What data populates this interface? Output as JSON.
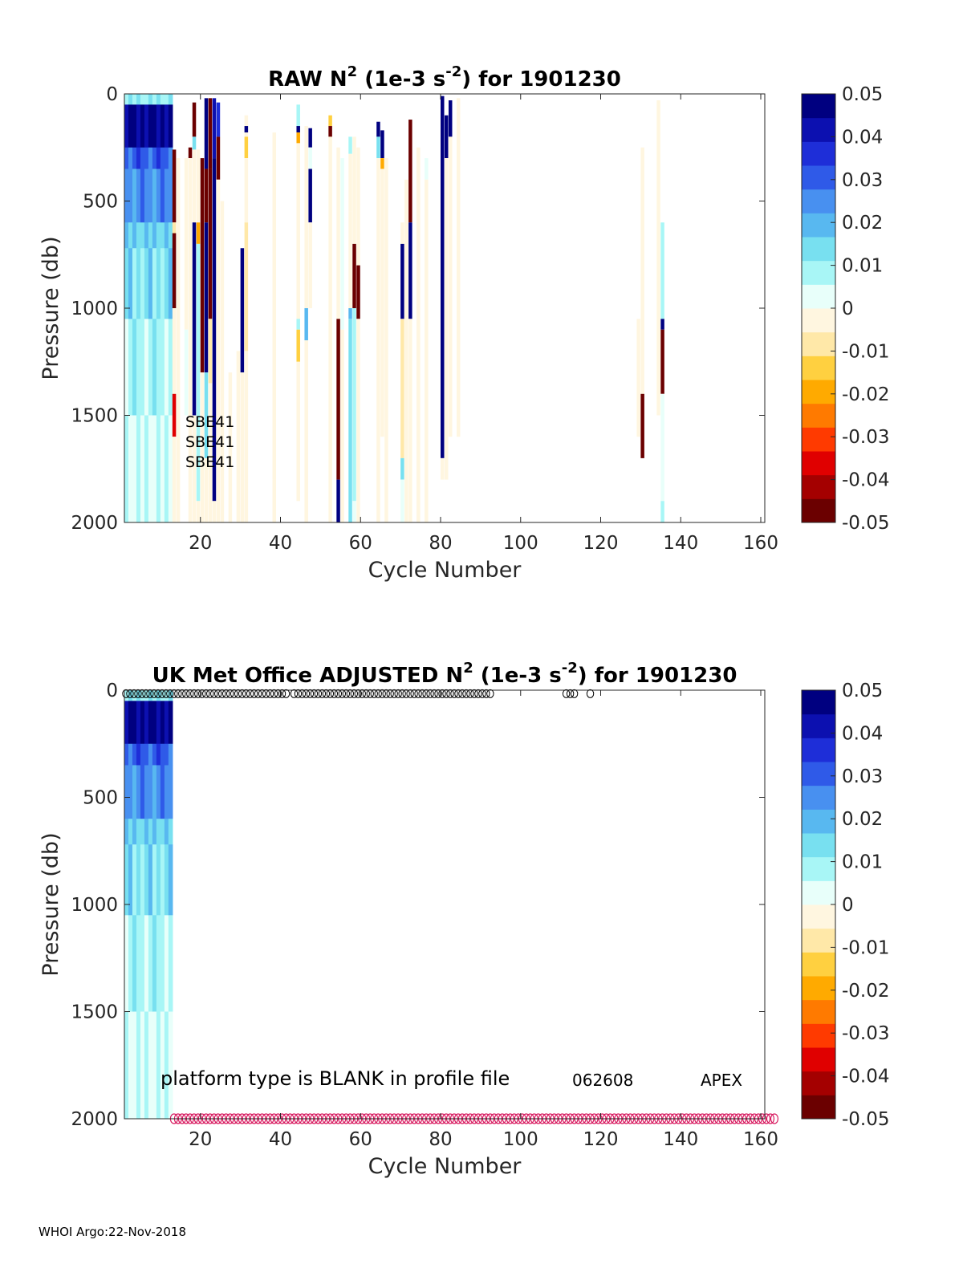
{
  "footer": "WHOI Argo:22-Nov-2018",
  "colormap": [
    "#6b0000",
    "#a40000",
    "#e00000",
    "#ff3a00",
    "#ff7a00",
    "#ffaa00",
    "#ffd040",
    "#ffe8a8",
    "#fff6e0",
    "#e8fffa",
    "#a8f6f6",
    "#78e0f0",
    "#58b8f0",
    "#4890f0",
    "#2f5ae8",
    "#1e2ed8",
    "#0c10b0",
    "#000080"
  ],
  "chart_data": [
    {
      "type": "heatmap",
      "title": {
        "pre": "RAW N",
        "sup1": "2",
        "mid": " (1e-3 s",
        "sup2": "-2",
        "post": ") for 1901230"
      },
      "xlabel": "Cycle Number",
      "ylabel": "Pressure (db)",
      "xlim": [
        1,
        161
      ],
      "ylim": [
        0,
        2000
      ],
      "y_reversed": true,
      "xticks": [
        "20",
        "40",
        "60",
        "80",
        "100",
        "120",
        "140",
        "160"
      ],
      "yticks": [
        "0",
        "500",
        "1000",
        "1500",
        "2000"
      ],
      "colorbar": {
        "range": [
          -0.05,
          0.05
        ],
        "ticks": [
          "0.05",
          "0.04",
          "0.03",
          "0.02",
          "0.01",
          "0",
          "-0.01",
          "-0.02",
          "-0.03",
          "-0.04",
          "-0.05"
        ]
      },
      "annotations": [
        "SBE41",
        "SBE41",
        "SBE41"
      ],
      "profile_columns": [
        {
          "cycle": 13,
          "segments": [
            [
              260,
              600,
              -0.045
            ],
            [
              600,
              650,
              -0.01
            ],
            [
              650,
              1000,
              -0.045
            ],
            [
              1000,
              1400,
              -0.005
            ],
            [
              1400,
              1600,
              -0.035
            ],
            [
              1600,
              2000,
              -0.004
            ]
          ]
        },
        {
          "cycle": 14,
          "segments": [
            [
              300,
              2000,
              -0.003
            ]
          ]
        },
        {
          "cycle": 16,
          "segments": [
            [
              300,
              1100,
              -0.003
            ],
            [
              1100,
              1500,
              0.0
            ]
          ]
        },
        {
          "cycle": 17,
          "segments": [
            [
              250,
              300,
              -0.045
            ],
            [
              300,
              2000,
              -0.003
            ]
          ]
        },
        {
          "cycle": 18,
          "segments": [
            [
              40,
              200,
              -0.045
            ],
            [
              200,
              260,
              0.012
            ],
            [
              260,
              600,
              -0.003
            ],
            [
              600,
              1500,
              0.045
            ],
            [
              1500,
              2000,
              -0.003
            ]
          ]
        },
        {
          "cycle": 19,
          "segments": [
            [
              260,
              600,
              -0.003
            ],
            [
              600,
              700,
              -0.02
            ],
            [
              700,
              1900,
              0.01
            ],
            [
              1900,
              2000,
              -0.003
            ]
          ]
        },
        {
          "cycle": 20,
          "segments": [
            [
              300,
              1300,
              -0.045
            ],
            [
              1300,
              2000,
              -0.003
            ]
          ]
        },
        {
          "cycle": 21,
          "segments": [
            [
              20,
              350,
              0.045
            ],
            [
              350,
              600,
              -0.045
            ],
            [
              600,
              1300,
              0.045
            ],
            [
              1300,
              1700,
              0.012
            ],
            [
              1700,
              2000,
              -0.003
            ]
          ]
        },
        {
          "cycle": 22,
          "segments": [
            [
              20,
              350,
              -0.045
            ],
            [
              350,
              1050,
              -0.045
            ],
            [
              1050,
              1350,
              -0.01
            ],
            [
              1350,
              2000,
              -0.003
            ]
          ]
        },
        {
          "cycle": 23,
          "segments": [
            [
              20,
              300,
              0.04
            ],
            [
              300,
              1900,
              0.045
            ],
            [
              1900,
              2000,
              -0.003
            ]
          ]
        },
        {
          "cycle": 24,
          "segments": [
            [
              40,
              200,
              0.035
            ],
            [
              200,
              400,
              -0.045
            ],
            [
              400,
              2000,
              -0.003
            ]
          ]
        },
        {
          "cycle": 25,
          "segments": [
            [
              500,
              2000,
              -0.003
            ]
          ]
        },
        {
          "cycle": 27,
          "segments": [
            [
              1300,
              2000,
              -0.003
            ]
          ]
        },
        {
          "cycle": 29,
          "segments": [
            [
              1200,
              2000,
              -0.003
            ]
          ]
        },
        {
          "cycle": 30,
          "segments": [
            [
              720,
              1300,
              0.045
            ],
            [
              1300,
              2000,
              -0.003
            ]
          ]
        },
        {
          "cycle": 31,
          "segments": [
            [
              100,
              150,
              -0.003
            ],
            [
              150,
              180,
              0.045
            ],
            [
              180,
              200,
              -0.003
            ],
            [
              200,
              300,
              -0.015
            ],
            [
              300,
              600,
              -0.003
            ],
            [
              600,
              1200,
              -0.01
            ],
            [
              1200,
              2000,
              -0.003
            ]
          ]
        },
        {
          "cycle": 38,
          "segments": [
            [
              180,
              1800,
              -0.003
            ],
            [
              1800,
              2000,
              -0.004
            ]
          ]
        },
        {
          "cycle": 44,
          "segments": [
            [
              50,
              150,
              0.008
            ],
            [
              150,
              180,
              0.045
            ],
            [
              180,
              230,
              -0.02
            ],
            [
              230,
              1050,
              -0.003
            ],
            [
              1050,
              1100,
              0.01
            ],
            [
              1100,
              1250,
              -0.015
            ],
            [
              1250,
              1900,
              -0.003
            ]
          ]
        },
        {
          "cycle": 46,
          "segments": [
            [
              150,
              1000,
              -0.003
            ],
            [
              1000,
              1150,
              0.02
            ],
            [
              1150,
              2000,
              -0.003
            ]
          ]
        },
        {
          "cycle": 47,
          "segments": [
            [
              160,
              250,
              0.045
            ],
            [
              250,
              350,
              0.0
            ],
            [
              350,
              600,
              0.045
            ],
            [
              600,
              1000,
              -0.003
            ]
          ]
        },
        {
          "cycle": 52,
          "segments": [
            [
              100,
              150,
              -0.015
            ],
            [
              150,
              200,
              -0.045
            ],
            [
              200,
              350,
              -0.003
            ],
            [
              350,
              1150,
              -0.003
            ],
            [
              1150,
              2000,
              -0.003
            ]
          ]
        },
        {
          "cycle": 54,
          "segments": [
            [
              250,
              1050,
              -0.003
            ],
            [
              1050,
              1800,
              -0.045
            ],
            [
              1800,
              2000,
              0.045
            ]
          ]
        },
        {
          "cycle": 55,
          "segments": [
            [
              300,
              1100,
              0.0
            ],
            [
              1100,
              2000,
              -0.003
            ]
          ]
        },
        {
          "cycle": 57,
          "segments": [
            [
              200,
              280,
              0.01
            ],
            [
              280,
              550,
              -0.003
            ],
            [
              550,
              1000,
              -0.003
            ],
            [
              1000,
              1050,
              0.02
            ],
            [
              1050,
              2000,
              0.012
            ]
          ]
        },
        {
          "cycle": 58,
          "segments": [
            [
              200,
              700,
              -0.003
            ],
            [
              700,
              1000,
              -0.045
            ],
            [
              1000,
              1900,
              0.008
            ],
            [
              1900,
              2000,
              0.003
            ]
          ]
        },
        {
          "cycle": 59,
          "segments": [
            [
              250,
              800,
              -0.003
            ],
            [
              800,
              1050,
              -0.045
            ],
            [
              1050,
              2000,
              -0.003
            ]
          ]
        },
        {
          "cycle": 64,
          "segments": [
            [
              130,
              200,
              0.045
            ],
            [
              200,
              300,
              0.012
            ],
            [
              300,
              2000,
              -0.003
            ]
          ]
        },
        {
          "cycle": 65,
          "segments": [
            [
              170,
              300,
              0.045
            ],
            [
              300,
              350,
              -0.02
            ],
            [
              350,
              1600,
              -0.003
            ]
          ]
        },
        {
          "cycle": 66,
          "segments": [
            [
              300,
              2000,
              -0.003
            ]
          ]
        },
        {
          "cycle": 70,
          "segments": [
            [
              600,
              700,
              -0.003
            ],
            [
              700,
              1050,
              0.045
            ],
            [
              1050,
              1700,
              -0.01
            ],
            [
              1700,
              1800,
              0.012
            ],
            [
              1800,
              2000,
              0.005
            ]
          ]
        },
        {
          "cycle": 71,
          "segments": [
            [
              400,
              2000,
              -0.003
            ]
          ]
        },
        {
          "cycle": 72,
          "segments": [
            [
              120,
              600,
              -0.045
            ],
            [
              600,
              1050,
              0.045
            ],
            [
              1050,
              2000,
              -0.003
            ]
          ]
        },
        {
          "cycle": 74,
          "segments": [
            [
              250,
              1050,
              -0.003
            ],
            [
              1050,
              2000,
              -0.003
            ]
          ]
        },
        {
          "cycle": 76,
          "segments": [
            [
              300,
              400,
              0.005
            ],
            [
              400,
              2000,
              -0.003
            ]
          ]
        },
        {
          "cycle": 80,
          "segments": [
            [
              10,
              1700,
              0.045
            ],
            [
              1700,
              1800,
              -0.003
            ]
          ]
        },
        {
          "cycle": 81,
          "segments": [
            [
              100,
              300,
              0.045
            ],
            [
              300,
              1800,
              -0.003
            ]
          ]
        },
        {
          "cycle": 82,
          "segments": [
            [
              30,
              200,
              0.045
            ],
            [
              200,
              1600,
              -0.003
            ]
          ]
        },
        {
          "cycle": 84,
          "segments": [
            [
              20,
              80,
              -0.003
            ],
            [
              80,
              1600,
              -0.003
            ]
          ]
        },
        {
          "cycle": 129,
          "segments": [
            [
              1050,
              1600,
              -0.003
            ]
          ]
        },
        {
          "cycle": 130,
          "segments": [
            [
              250,
              1400,
              -0.003
            ],
            [
              1400,
              1700,
              -0.045
            ]
          ]
        },
        {
          "cycle": 134,
          "segments": [
            [
              30,
              1500,
              -0.003
            ]
          ]
        },
        {
          "cycle": 135,
          "segments": [
            [
              600,
              1050,
              0.01
            ],
            [
              1050,
              1100,
              0.045
            ],
            [
              1100,
              1400,
              -0.045
            ],
            [
              1400,
              1900,
              0.005
            ],
            [
              1900,
              2000,
              0.01
            ]
          ]
        }
      ]
    },
    {
      "type": "heatmap",
      "title": {
        "pre": "UK Met Office  ADJUSTED N",
        "sup1": "2",
        "mid": " (1e-3 s",
        "sup2": "-2",
        "post": ") for 1901230"
      },
      "xlabel": "Cycle Number",
      "ylabel": "Pressure (db)",
      "xlim": [
        1,
        161
      ],
      "ylim": [
        0,
        2000
      ],
      "y_reversed": true,
      "xticks": [
        "20",
        "40",
        "60",
        "80",
        "100",
        "120",
        "140",
        "160"
      ],
      "yticks": [
        "0",
        "500",
        "1000",
        "1500",
        "2000"
      ],
      "colorbar": {
        "range": [
          -0.05,
          0.05
        ],
        "ticks": [
          "0.05",
          "0.04",
          "0.03",
          "0.02",
          "0.01",
          "0",
          "-0.01",
          "-0.02",
          "-0.03",
          "-0.04",
          "-0.05"
        ]
      },
      "annotations": [
        "platform type is BLANK in profile file",
        "062608",
        "APEX"
      ],
      "top_markers": {
        "symbol": "o",
        "cycles_range": [
          1,
          92
        ],
        "gap_cycles": [
          42
        ],
        "extra_cycles": [
          111,
          112,
          113,
          117
        ],
        "pressure": 5
      },
      "bottom_markers": {
        "symbol": "o",
        "color": "#d81b60",
        "cycles_range": [
          13,
          163
        ],
        "pressure": 2000
      }
    }
  ],
  "shared_data_block": {
    "cycles": [
      1,
      12
    ],
    "layers": [
      {
        "from": 0,
        "to": 50,
        "value": 0.01
      },
      {
        "from": 50,
        "to": 250,
        "value": 0.045
      },
      {
        "from": 250,
        "to": 350,
        "value": 0.03
      },
      {
        "from": 350,
        "to": 600,
        "value": 0.025
      },
      {
        "from": 600,
        "to": 720,
        "value": 0.016
      },
      {
        "from": 720,
        "to": 1050,
        "value": 0.013
      },
      {
        "from": 1050,
        "to": 1500,
        "value": 0.008
      },
      {
        "from": 1500,
        "to": 2000,
        "value": 0.004
      }
    ]
  }
}
